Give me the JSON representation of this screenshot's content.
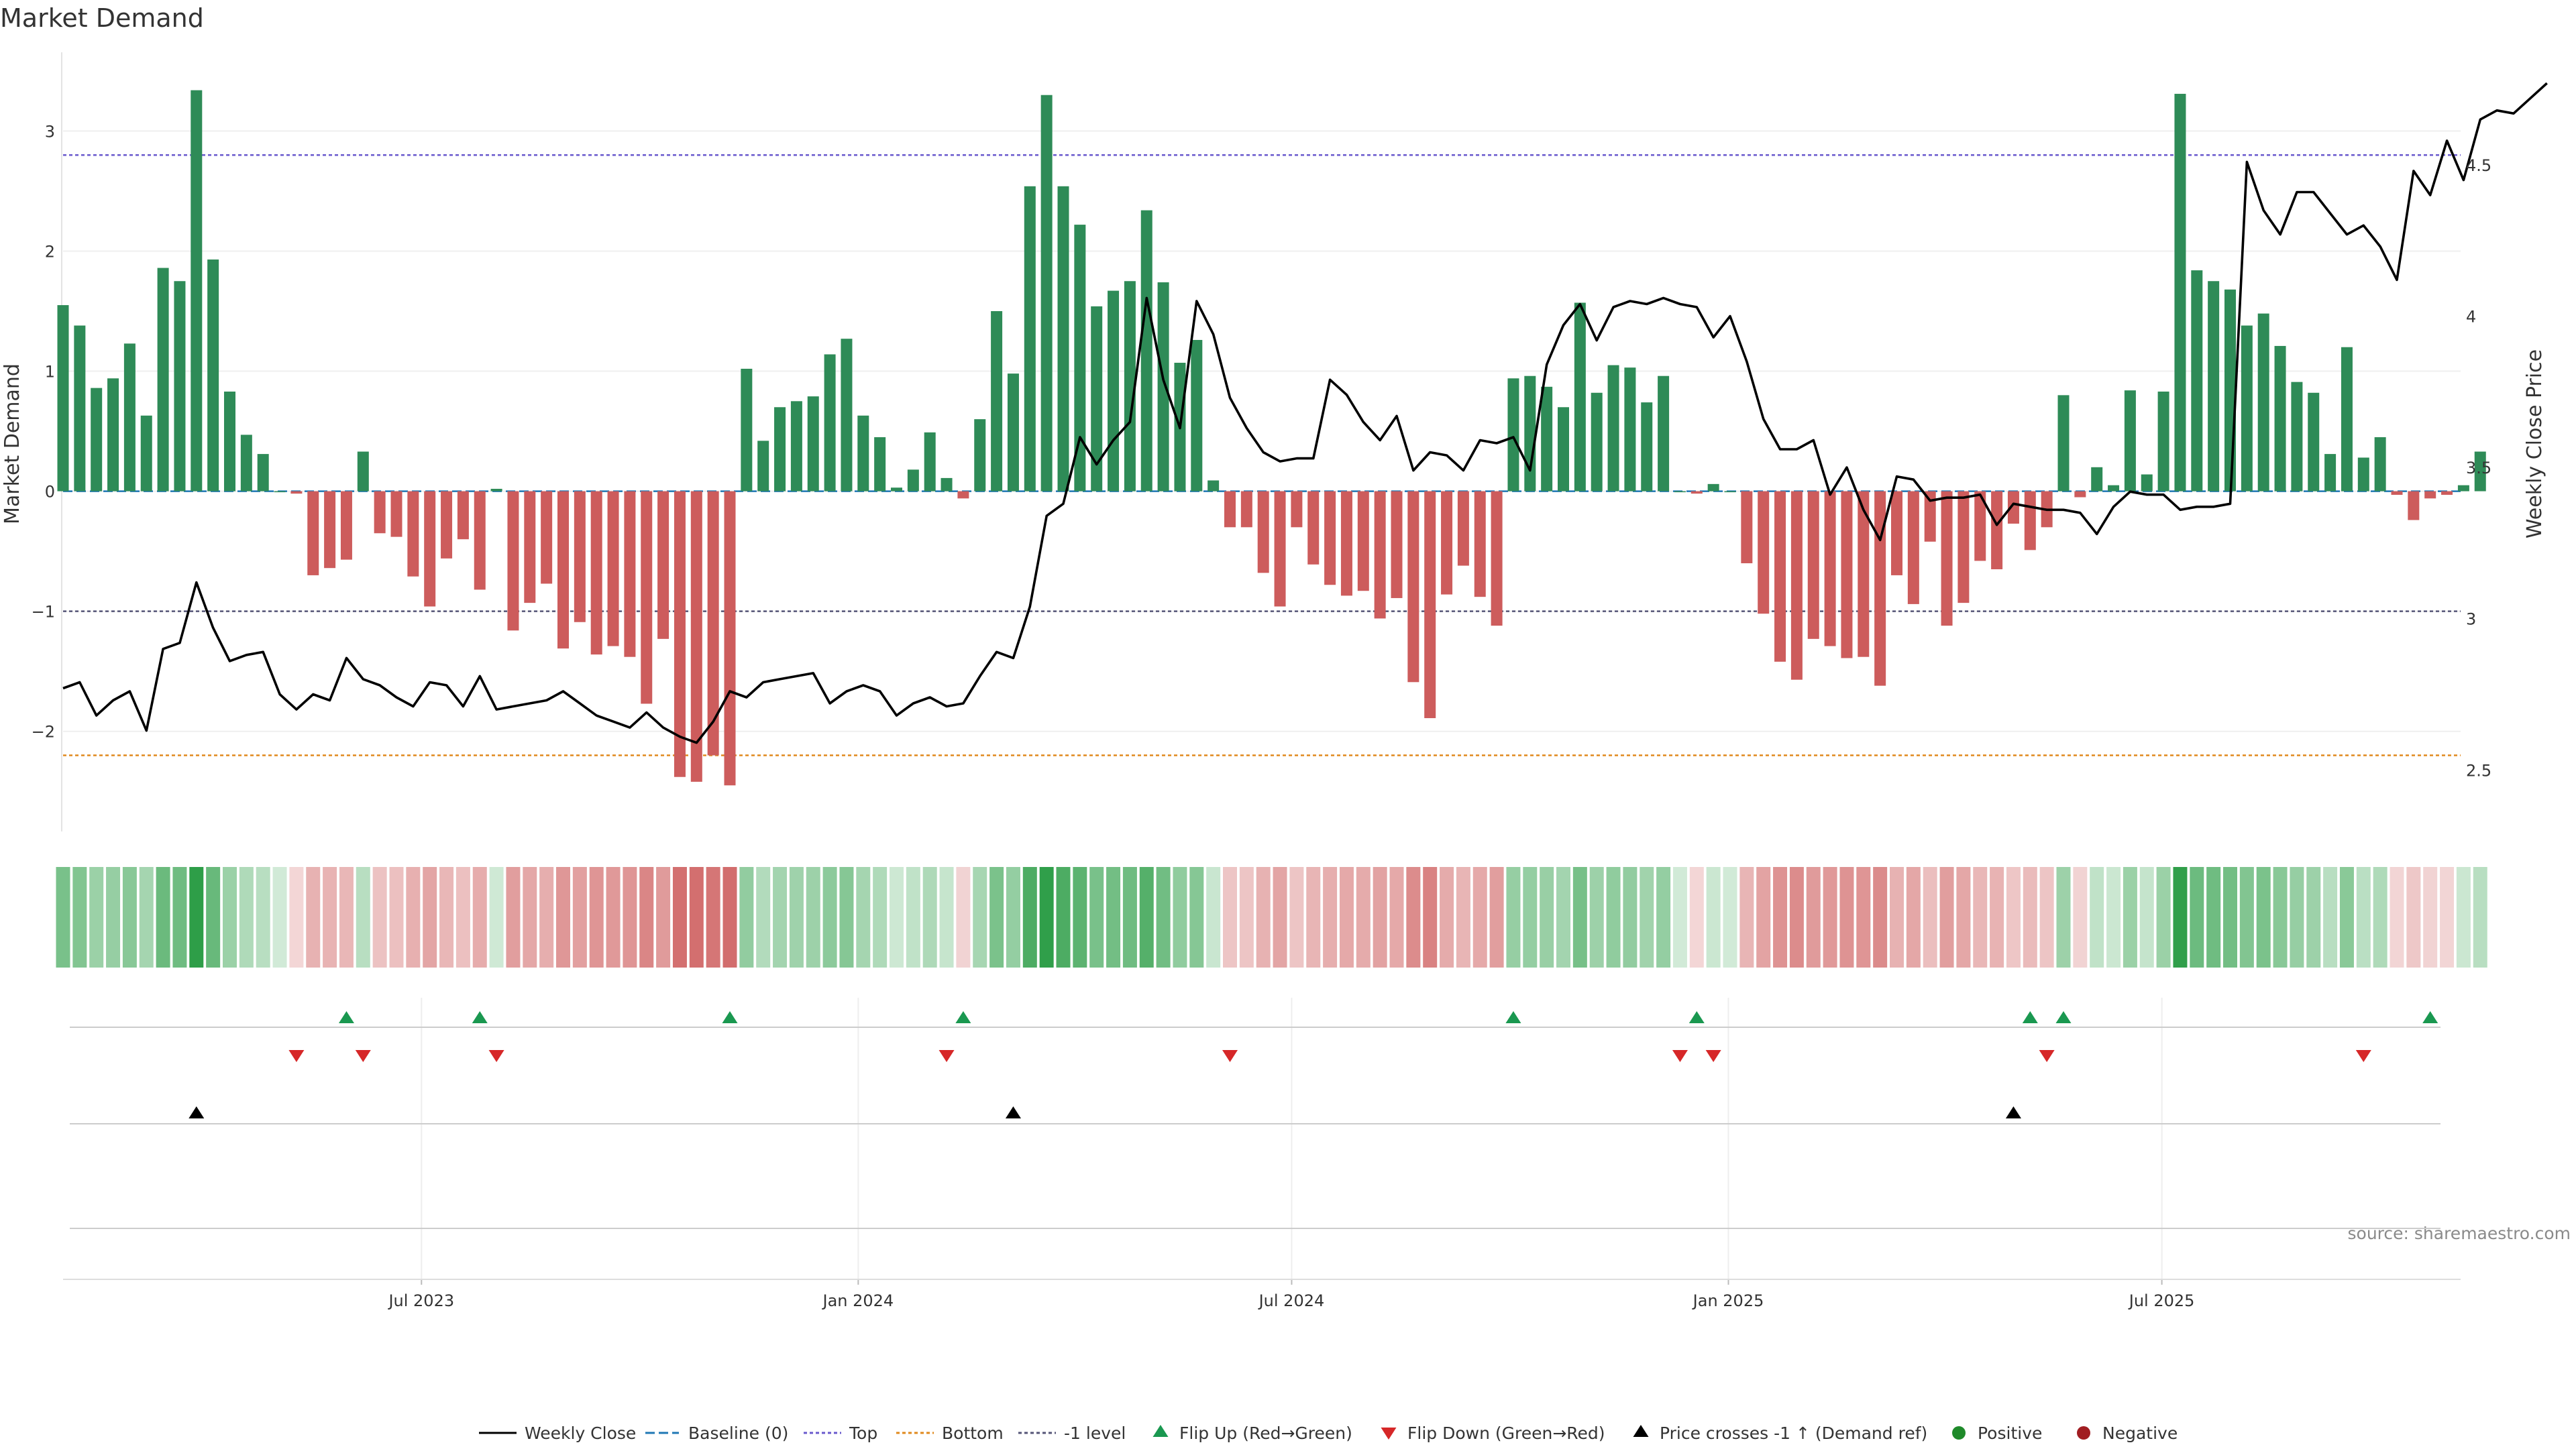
{
  "chart_data": {
    "type": "bar",
    "title": "Market Demand",
    "ylabel": "Market Demand",
    "y2label": "Weekly Close Price",
    "source": "source: sharemaestro.com",
    "ylim": [
      -2.75,
      3.6
    ],
    "y2lim": [
      2.33,
      4.85
    ],
    "y_ticks": [
      3,
      2,
      1,
      0,
      -1,
      -2
    ],
    "y_tick_labels": [
      "3",
      "2",
      "1",
      "0",
      "−1",
      "−2"
    ],
    "y2_ticks": [
      4.5,
      4,
      3.5,
      3,
      2.5
    ],
    "y2_tick_labels": [
      "4.5",
      "4",
      "3.5",
      "3",
      "2.5"
    ],
    "x_tick_labels": [
      {
        "label": "Jul 2023",
        "week": 21.5
      },
      {
        "label": "Jan 2024",
        "week": 47.7
      },
      {
        "label": "Jul 2024",
        "week": 73.7
      },
      {
        "label": "Jan 2025",
        "week": 99.9
      },
      {
        "label": "Jul 2025",
        "week": 125.9
      }
    ],
    "reference_lines": {
      "top": 2.8,
      "bottom": -2.2,
      "minus_one": -1.0,
      "baseline": 0
    },
    "colors": {
      "positive": "#2e8b57",
      "negative": "#cd5c5c",
      "price": "#000000",
      "top": "#6a5acd",
      "bottom": "#e08a1e",
      "minus_one": "#555577",
      "baseline": "#1f77b4",
      "flip_up": "#1a9850",
      "flip_down": "#d62728",
      "cross": "#000000",
      "heat_pos": "#2e9e48",
      "heat_neg": "#c94f4f"
    },
    "demand": [
      1.55,
      1.38,
      0.86,
      0.94,
      1.23,
      0.63,
      1.86,
      1.75,
      3.34,
      1.93,
      0.83,
      0.47,
      0.31,
      0,
      -0.02,
      -0.7,
      -0.64,
      -0.57,
      0.33,
      -0.35,
      -0.38,
      -0.71,
      -0.96,
      -0.56,
      -0.4,
      -0.82,
      0.02,
      -1.16,
      -0.93,
      -0.77,
      -1.31,
      -1.09,
      -1.36,
      -1.29,
      -1.38,
      -1.77,
      -1.23,
      -2.38,
      -2.42,
      -2.2,
      -2.45,
      1.02,
      0.42,
      0.7,
      0.75,
      0.79,
      1.14,
      1.27,
      0.63,
      0.45,
      0.03,
      0.18,
      0.49,
      0.11,
      -0.06,
      0.6,
      1.5,
      0.98,
      2.54,
      3.3,
      2.54,
      2.22,
      1.54,
      1.67,
      1.75,
      2.34,
      1.74,
      1.07,
      1.26,
      0.09,
      -0.3,
      -0.3,
      -0.68,
      -0.96,
      -0.3,
      -0.61,
      -0.78,
      -0.87,
      -0.83,
      -1.06,
      -0.89,
      -1.59,
      -1.89,
      -0.86,
      -0.62,
      -0.88,
      -1.12,
      0.94,
      0.96,
      0.87,
      0.7,
      1.57,
      0.82,
      1.05,
      1.03,
      0.74,
      0.96,
      0,
      -0.02,
      0.06,
      0,
      -0.6,
      -1.02,
      -1.42,
      -1.57,
      -1.23,
      -1.29,
      -1.39,
      -1.38,
      -1.62,
      -0.7,
      -0.94,
      -0.42,
      -1.12,
      -0.93,
      -0.58,
      -0.65,
      -0.27,
      -0.49,
      -0.3,
      0.8,
      -0.05,
      0.2,
      0.05,
      0.84,
      0.14,
      0.83,
      3.31,
      1.84,
      1.75,
      1.68,
      1.38,
      1.48,
      1.21,
      0.91,
      0.82,
      0.31,
      1.2,
      0.28,
      0.45,
      -0.03,
      -0.24,
      -0.06,
      -0.03,
      0.05,
      0.33
    ],
    "price": [
      2.77,
      2.79,
      2.68,
      2.73,
      2.76,
      2.63,
      2.9,
      2.92,
      3.12,
      2.97,
      2.86,
      2.88,
      2.89,
      2.75,
      2.7,
      2.75,
      2.73,
      2.87,
      2.8,
      2.78,
      2.74,
      2.71,
      2.79,
      2.78,
      2.71,
      2.81,
      2.7,
      2.71,
      2.72,
      2.73,
      2.76,
      2.72,
      2.68,
      2.66,
      2.64,
      2.69,
      2.64,
      2.61,
      2.59,
      2.66,
      2.76,
      2.74,
      2.79,
      2.8,
      2.81,
      2.82,
      2.72,
      2.76,
      2.78,
      2.76,
      2.68,
      2.72,
      2.74,
      2.71,
      2.72,
      2.81,
      2.89,
      2.87,
      3.04,
      3.34,
      3.38,
      3.6,
      3.51,
      3.59,
      3.65,
      4.06,
      3.79,
      3.63,
      4.05,
      3.94,
      3.73,
      3.63,
      3.55,
      3.52,
      3.53,
      3.53,
      3.79,
      3.74,
      3.65,
      3.59,
      3.67,
      3.49,
      3.55,
      3.54,
      3.49,
      3.59,
      3.58,
      3.6,
      3.49,
      3.84,
      3.97,
      4.04,
      3.92,
      4.03,
      4.05,
      4.04,
      4.06,
      4.04,
      4.03,
      3.93,
      4.0,
      3.85,
      3.66,
      3.56,
      3.56,
      3.59,
      3.41,
      3.5,
      3.36,
      3.26,
      3.47,
      3.46,
      3.39,
      3.4,
      3.4,
      3.41,
      3.31,
      3.38,
      3.37,
      3.36,
      3.36,
      3.35,
      3.28,
      3.37,
      3.42,
      3.41,
      3.41,
      3.36,
      3.37,
      3.37,
      3.38,
      4.51,
      4.35,
      4.27,
      4.41,
      4.41,
      4.34,
      4.27,
      4.3,
      4.23,
      4.12,
      4.48,
      4.4,
      4.58,
      4.45,
      4.65,
      4.68,
      4.67,
      4.72,
      4.77
    ],
    "flip_up_weeks": [
      17,
      25,
      40,
      54,
      87,
      98,
      118,
      120,
      142
    ],
    "flip_down_weeks": [
      14,
      18,
      26,
      53,
      70,
      97,
      99,
      119,
      138
    ],
    "cross_weeks": [
      8,
      57,
      117
    ],
    "legend": [
      {
        "label": "Weekly Close",
        "marker": "line"
      },
      {
        "label": "Baseline (0)",
        "marker": "dash"
      },
      {
        "label": "Top",
        "marker": "dot-purple"
      },
      {
        "label": "Bottom",
        "marker": "dot-orange"
      },
      {
        "label": "-1 level",
        "marker": "dot-gray"
      },
      {
        "label": "Flip Up (Red→Green)",
        "marker": "tri-up-green"
      },
      {
        "label": "Flip Down (Green→Red)",
        "marker": "tri-down-red"
      },
      {
        "label": "Price crosses -1 ↑ (Demand ref)",
        "marker": "tri-up-black"
      },
      {
        "label": "Positive",
        "marker": "circle-green"
      },
      {
        "label": "Negative",
        "marker": "circle-red"
      }
    ]
  }
}
